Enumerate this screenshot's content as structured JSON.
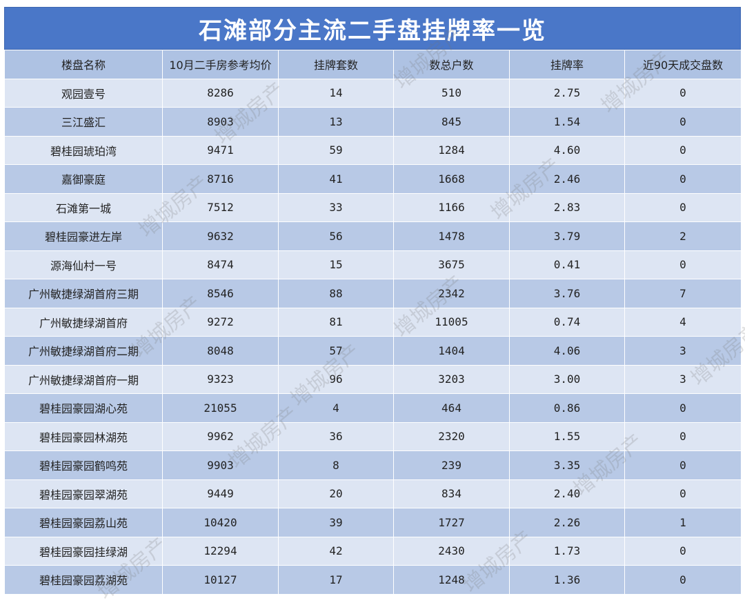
{
  "title": "石滩部分主流二手盘挂牌率一览",
  "table": {
    "headers": [
      "楼盘名称",
      "10月二手房参考均价",
      "挂牌套数",
      "数总户数",
      "挂牌率",
      "近90天成交盘数"
    ],
    "rows": [
      [
        "观园壹号",
        "8286",
        "14",
        "510",
        "2.75",
        "0"
      ],
      [
        "三江盛汇",
        "8903",
        "13",
        "845",
        "1.54",
        "0"
      ],
      [
        "碧桂园琥珀湾",
        "9471",
        "59",
        "1284",
        "4.60",
        "0"
      ],
      [
        "嘉御豪庭",
        "8716",
        "41",
        "1668",
        "2.46",
        "0"
      ],
      [
        "石滩第一城",
        "7512",
        "33",
        "1166",
        "2.83",
        "0"
      ],
      [
        "碧桂园豪进左岸",
        "9632",
        "56",
        "1478",
        "3.79",
        "2"
      ],
      [
        "源海仙村一号",
        "8474",
        "15",
        "3675",
        "0.41",
        "0"
      ],
      [
        "广州敏捷绿湖首府三期",
        "8546",
        "88",
        "2342",
        "3.76",
        "7"
      ],
      [
        "广州敏捷绿湖首府",
        "9272",
        "81",
        "11005",
        "0.74",
        "4"
      ],
      [
        "广州敏捷绿湖首府二期",
        "8048",
        "57",
        "1404",
        "4.06",
        "3"
      ],
      [
        "广州敏捷绿湖首府一期",
        "9323",
        "96",
        "3203",
        "3.00",
        "3"
      ],
      [
        "碧桂园豪园湖心苑",
        "21055",
        "4",
        "464",
        "0.86",
        "0"
      ],
      [
        "碧桂园豪园林湖苑",
        "9962",
        "36",
        "2320",
        "1.55",
        "0"
      ],
      [
        "碧桂园豪园鹤鸣苑",
        "9903",
        "8",
        "239",
        "3.35",
        "0"
      ],
      [
        "碧桂园豪园翠湖苑",
        "9449",
        "20",
        "834",
        "2.40",
        "0"
      ],
      [
        "碧桂园豪园荔山苑",
        "10420",
        "39",
        "1727",
        "2.26",
        "1"
      ],
      [
        "碧桂园豪园挂绿湖",
        "12294",
        "42",
        "2430",
        "1.73",
        "0"
      ],
      [
        "碧桂园豪园荔湖苑",
        "10127",
        "17",
        "1248",
        "1.36",
        "0"
      ]
    ]
  },
  "watermark": "增城房产",
  "colors": {
    "title_bg": "#4a77c8",
    "header_bg": "#aec2e3",
    "row_light": "#dde5f3",
    "row_dark": "#b8c9e6"
  }
}
